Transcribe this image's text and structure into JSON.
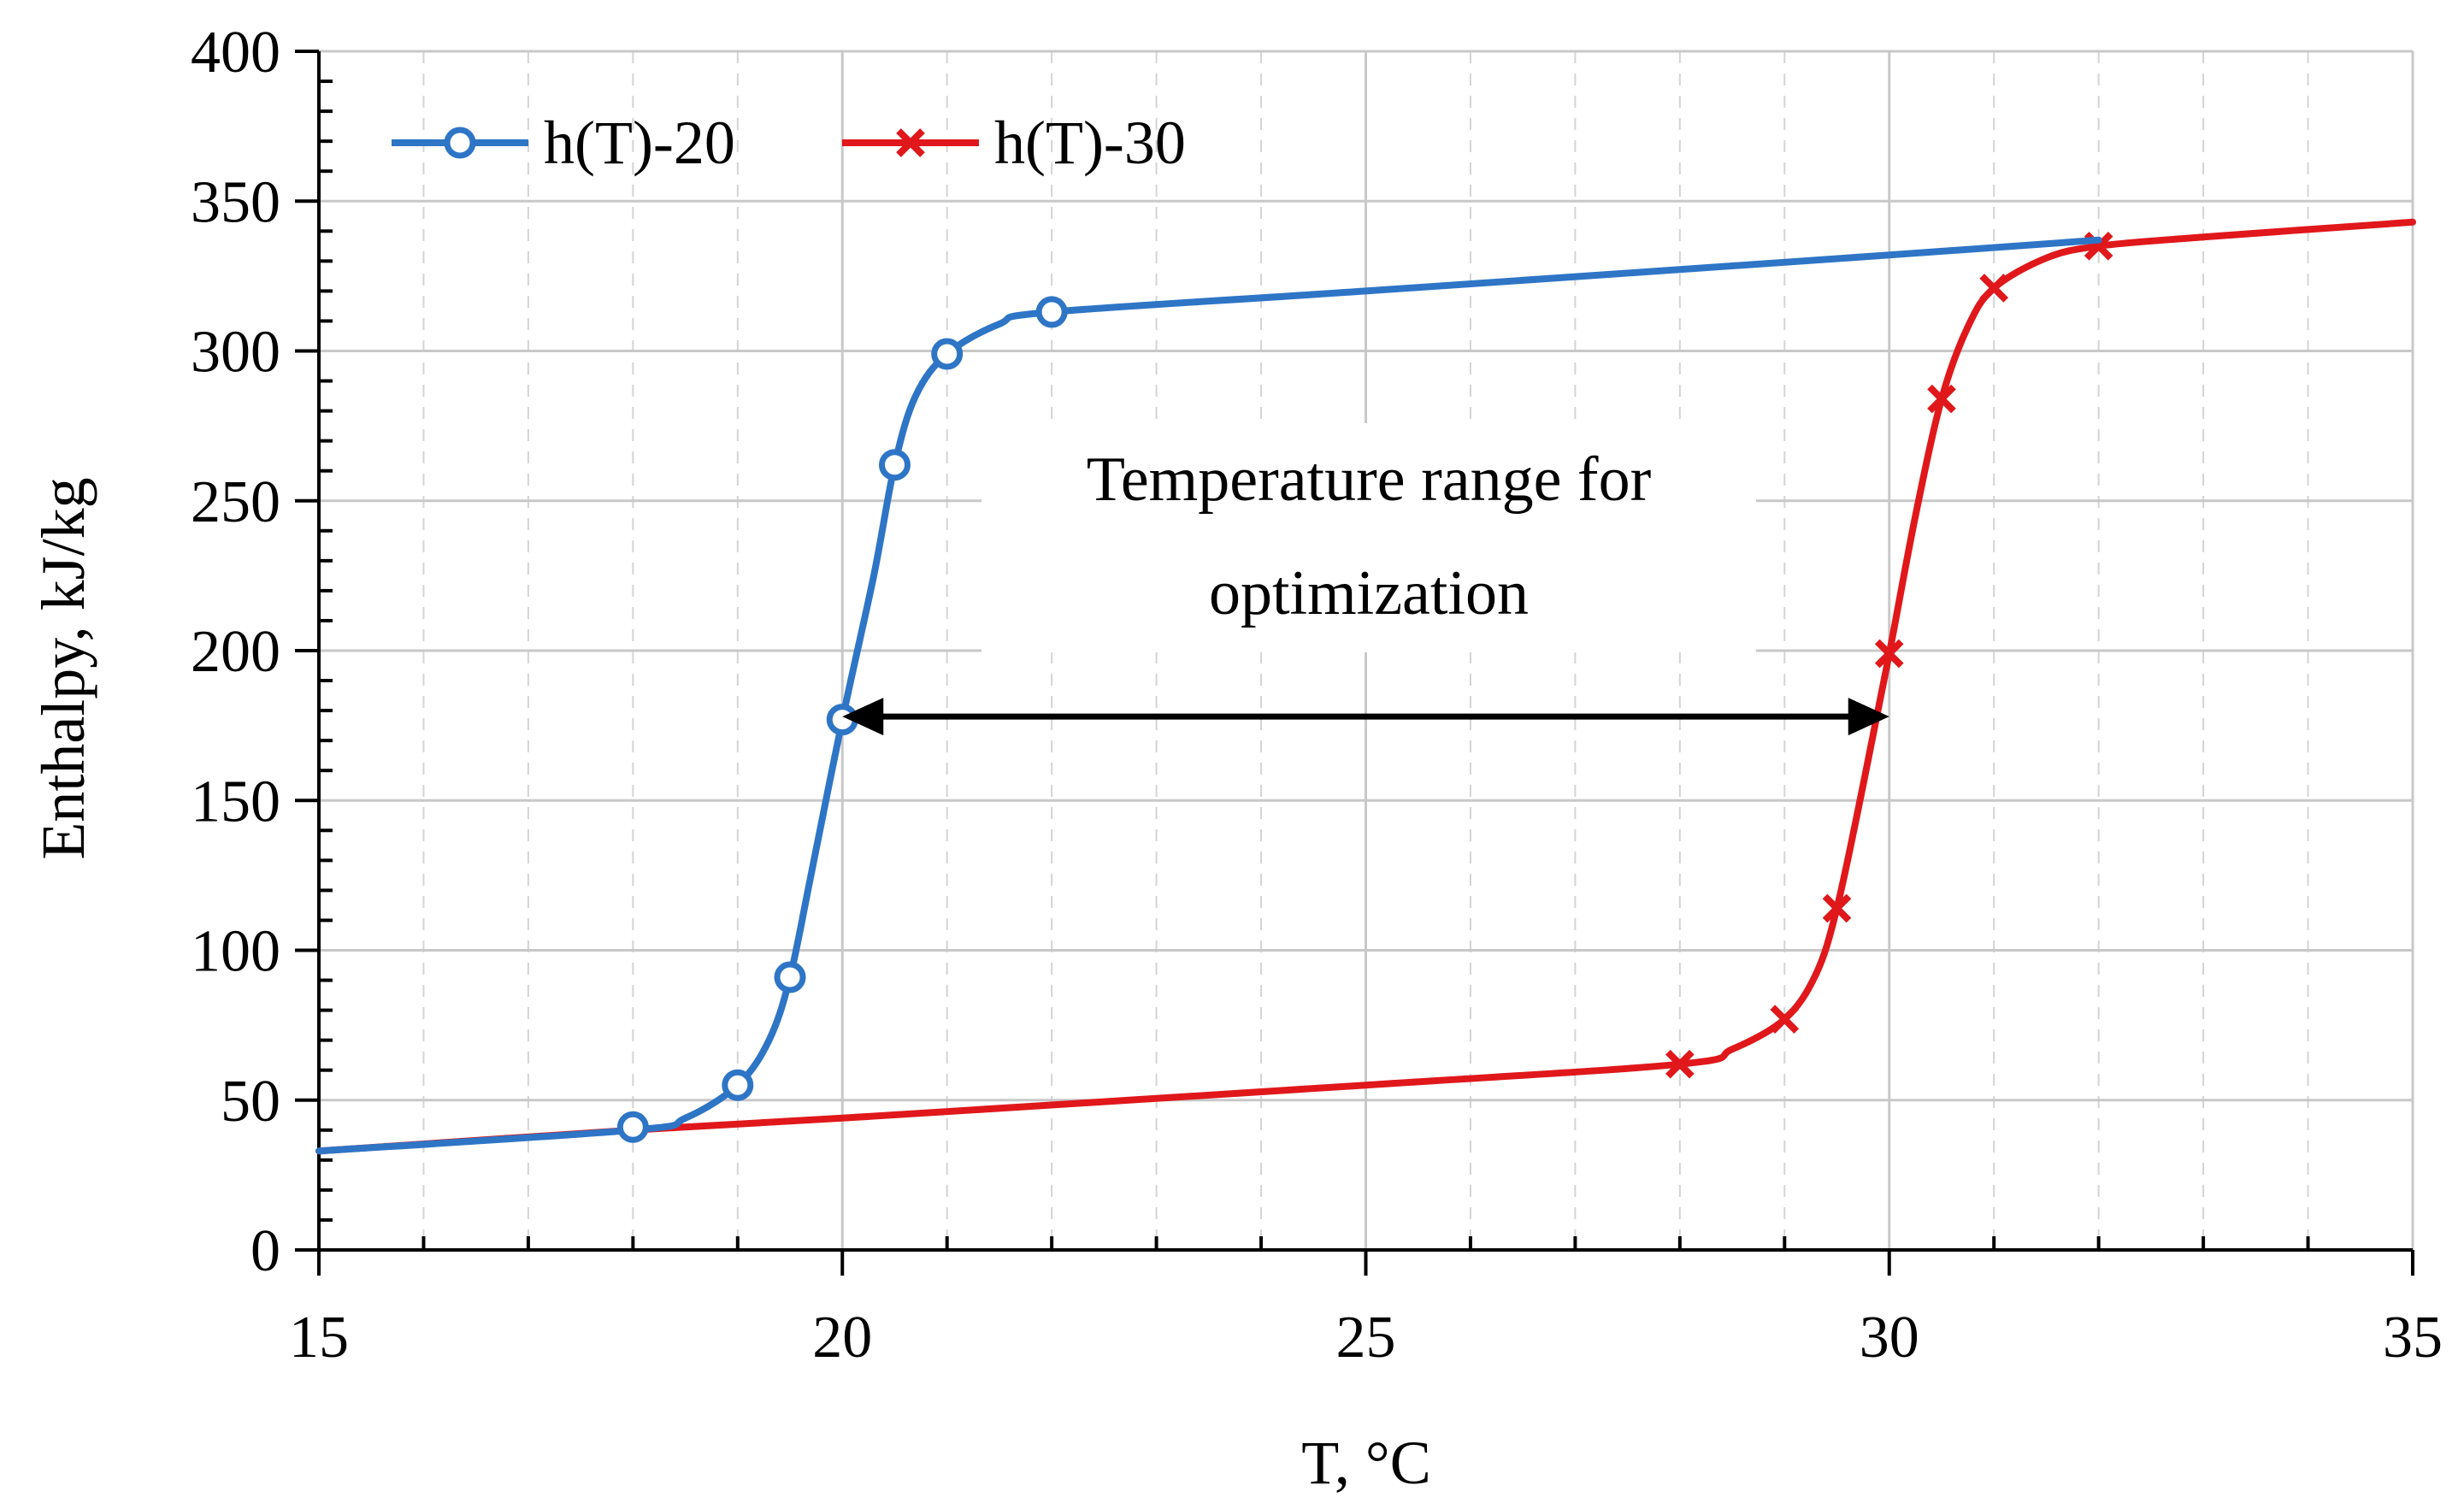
{
  "chart_data": {
    "type": "line",
    "title": "",
    "xlabel": "T, °C",
    "ylabel": "Enthalpy, kJ/kg",
    "xlim": [
      15,
      35
    ],
    "ylim": [
      0,
      400
    ],
    "x_ticks": [
      15,
      20,
      25,
      30,
      35
    ],
    "y_ticks": [
      0,
      50,
      100,
      150,
      200,
      250,
      300,
      350,
      400
    ],
    "grid": true,
    "legend_position": "top-left",
    "series": [
      {
        "name": "h(T)-20",
        "color": "#2e75c6",
        "marker": "circle",
        "curve": [
          [
            15,
            33
          ],
          [
            18,
            40
          ],
          [
            18.5,
            44
          ],
          [
            19,
            55
          ],
          [
            19.3,
            70
          ],
          [
            19.5,
            91
          ],
          [
            19.7,
            125
          ],
          [
            20,
            177
          ],
          [
            20.3,
            225
          ],
          [
            20.5,
            262
          ],
          [
            20.7,
            285
          ],
          [
            21,
            299
          ],
          [
            21.5,
            309
          ],
          [
            22,
            313
          ],
          [
            25,
            320
          ],
          [
            30,
            332
          ],
          [
            32,
            337
          ]
        ],
        "markers": [
          [
            18,
            41
          ],
          [
            19,
            55
          ],
          [
            19.5,
            91
          ],
          [
            20,
            177
          ],
          [
            20.5,
            262
          ],
          [
            21,
            299
          ],
          [
            22,
            313
          ]
        ]
      },
      {
        "name": "h(T)-30",
        "color": "#e0181b",
        "marker": "x",
        "curve": [
          [
            15,
            33
          ],
          [
            18,
            40
          ],
          [
            20,
            44
          ],
          [
            25,
            55
          ],
          [
            28,
            62
          ],
          [
            28.5,
            67
          ],
          [
            29,
            77
          ],
          [
            29.3,
            92
          ],
          [
            29.5,
            114
          ],
          [
            29.75,
            155
          ],
          [
            30,
            199
          ],
          [
            30.25,
            245
          ],
          [
            30.5,
            284
          ],
          [
            30.75,
            308
          ],
          [
            31,
            321
          ],
          [
            31.5,
            331
          ],
          [
            32,
            335
          ],
          [
            33,
            338
          ],
          [
            35,
            343
          ]
        ],
        "markers": [
          [
            28,
            62
          ],
          [
            29,
            77
          ],
          [
            29.5,
            114
          ],
          [
            30,
            199
          ],
          [
            30.5,
            284
          ],
          [
            31,
            321
          ],
          [
            32,
            335
          ]
        ]
      }
    ],
    "annotation": {
      "lines": [
        "Temperature range for",
        "optimization"
      ],
      "arrow_from": [
        20,
        178
      ],
      "arrow_to": [
        30,
        178
      ]
    }
  }
}
